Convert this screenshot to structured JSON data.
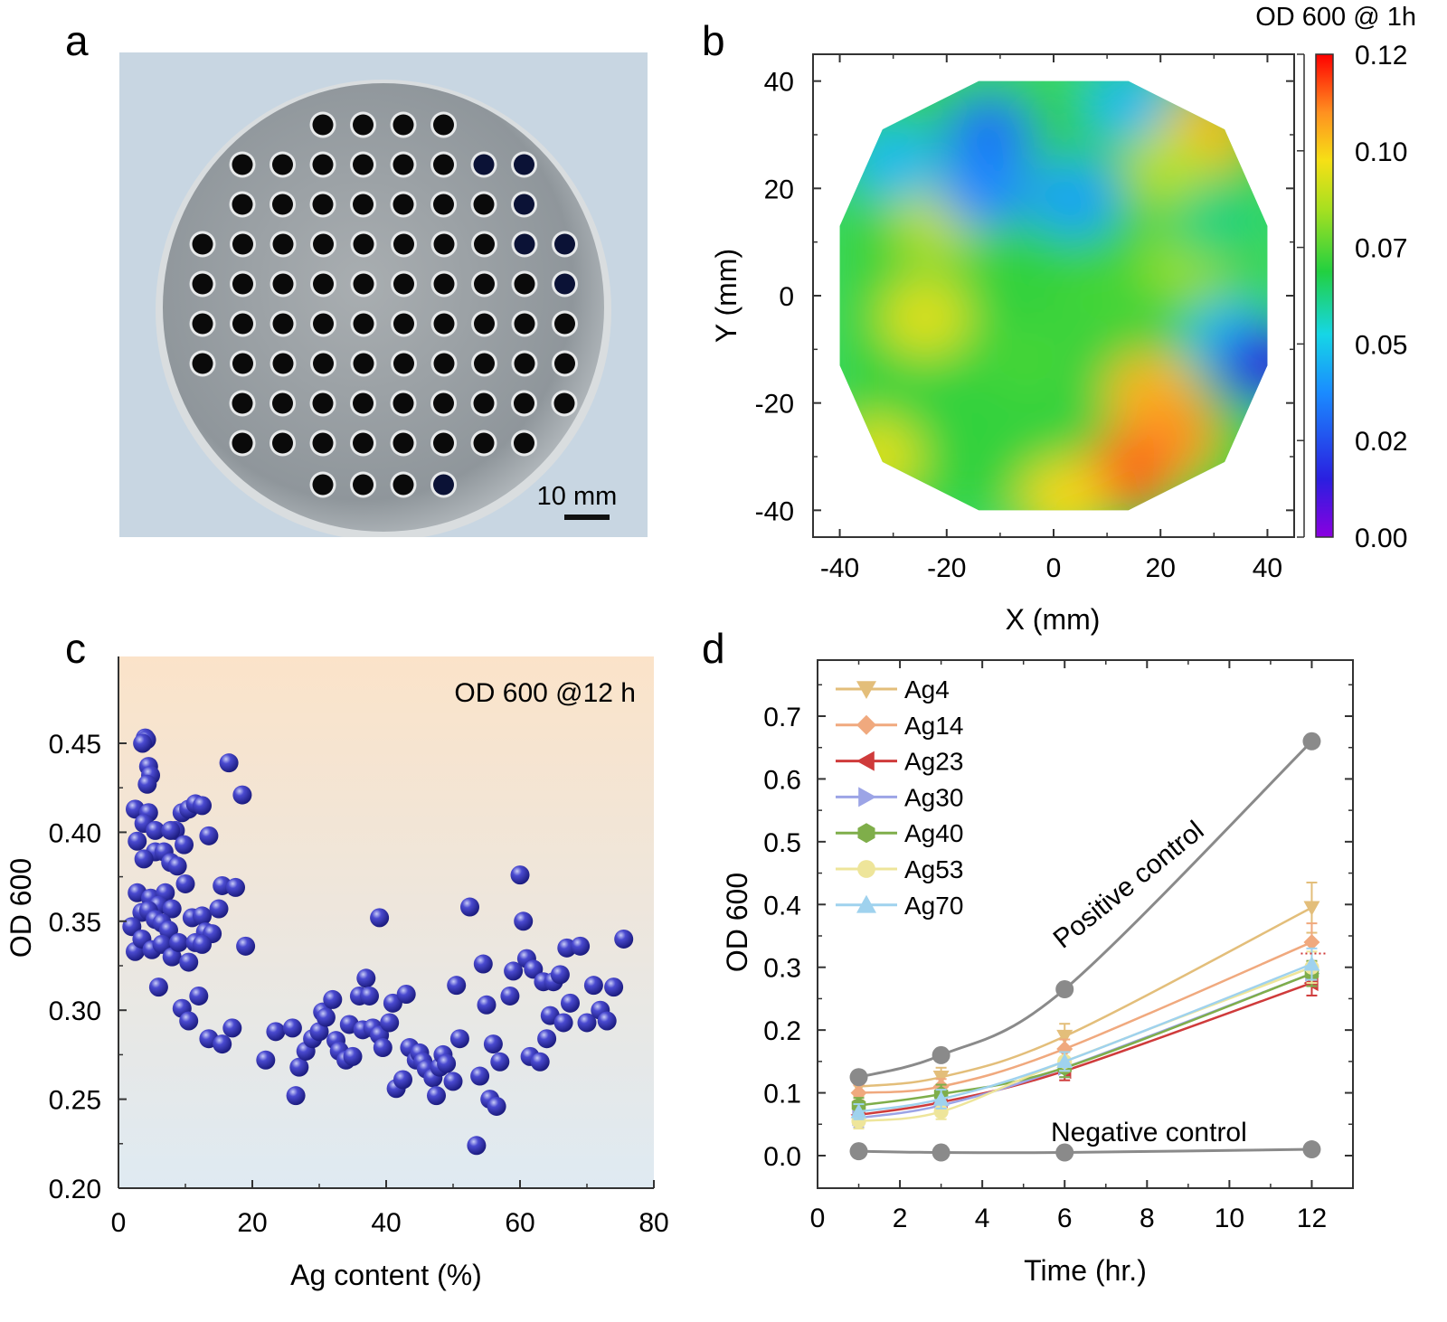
{
  "panels": {
    "a": {
      "letter": "a",
      "scale_bar_label": "10 mm",
      "hole_rows": [
        4,
        8,
        8,
        10,
        10,
        10,
        10,
        9,
        8,
        4
      ],
      "colors": {
        "background": "#c8d6e2",
        "disc": "#9aa1a6",
        "hole": "#0a0a0a",
        "hole_dark_blue": "#0b1236"
      }
    },
    "b": {
      "letter": "b",
      "chart_data": {
        "type": "heatmap",
        "title": "OD 600 @ 1h",
        "xlabel": "X (mm)",
        "ylabel": "Y (mm)",
        "xlim": [
          -45,
          45
        ],
        "ylim": [
          -45,
          45
        ],
        "xticks": [
          "-40",
          "-20",
          "0",
          "20",
          "40"
        ],
        "yticks": [
          "40",
          "20",
          "0",
          "-20",
          "-40"
        ],
        "colorbar": {
          "ticks": [
            "0.12",
            "0.10",
            "0.07",
            "0.05",
            "0.02",
            "0.00"
          ],
          "range": [
            0.0,
            0.12
          ]
        },
        "boundary_polygon": [
          [
            -14,
            40
          ],
          [
            14,
            40
          ],
          [
            32,
            31
          ],
          [
            40,
            13
          ],
          [
            40,
            -13
          ],
          [
            32,
            -31
          ],
          [
            14,
            -40
          ],
          [
            -14,
            -40
          ],
          [
            -32,
            -31
          ],
          [
            -40,
            -13
          ],
          [
            -40,
            13
          ],
          [
            -32,
            31
          ]
        ],
        "features": [
          {
            "x": -22,
            "y": 14,
            "value": 0.085
          },
          {
            "x": -24,
            "y": -4,
            "value": 0.09
          },
          {
            "x": -12,
            "y": 30,
            "value": 0.03
          },
          {
            "x": -13,
            "y": 20,
            "value": 0.035
          },
          {
            "x": 4,
            "y": 18,
            "value": 0.04
          },
          {
            "x": 14,
            "y": 36,
            "value": 0.045
          },
          {
            "x": 28,
            "y": 30,
            "value": 0.1
          },
          {
            "x": 22,
            "y": 24,
            "value": 0.085
          },
          {
            "x": 25,
            "y": 6,
            "value": 0.08
          },
          {
            "x": 33,
            "y": -8,
            "value": 0.045
          },
          {
            "x": 39,
            "y": -13,
            "value": 0.015
          },
          {
            "x": 18,
            "y": -18,
            "value": 0.1
          },
          {
            "x": 22,
            "y": -26,
            "value": 0.105
          },
          {
            "x": 14,
            "y": -33,
            "value": 0.11
          },
          {
            "x": 2,
            "y": -38,
            "value": 0.095
          },
          {
            "x": -33,
            "y": -30,
            "value": 0.09
          },
          {
            "x": 10,
            "y": 0,
            "value": 0.07
          },
          {
            "x": 30,
            "y": 14,
            "value": 0.06
          },
          {
            "x": -30,
            "y": 25,
            "value": 0.045
          },
          {
            "x": -5,
            "y": -12,
            "value": 0.07
          }
        ]
      }
    },
    "c": {
      "letter": "c",
      "chart_data": {
        "type": "scatter",
        "annotation": "OD 600 @12 h",
        "xlabel": "Ag content (%)",
        "ylabel": "OD 600",
        "xlim": [
          0,
          80
        ],
        "ylim": [
          0.2,
          0.5
        ],
        "xticks": [
          "0",
          "20",
          "40",
          "60",
          "80"
        ],
        "yticks": [
          "0.20",
          "0.25",
          "0.30",
          "0.35",
          "0.40",
          "0.45"
        ],
        "colors": {
          "point": "#2d2da8",
          "bg_top": "#fbe3c9",
          "bg_bottom": "#dfeaf2"
        },
        "points": [
          [
            4.0,
            0.453
          ],
          [
            4.2,
            0.452
          ],
          [
            3.6,
            0.45
          ],
          [
            4.5,
            0.437
          ],
          [
            4.8,
            0.432
          ],
          [
            4.3,
            0.427
          ],
          [
            2.5,
            0.413
          ],
          [
            4.5,
            0.411
          ],
          [
            3.8,
            0.405
          ],
          [
            2.8,
            0.395
          ],
          [
            5.5,
            0.401
          ],
          [
            9.5,
            0.411
          ],
          [
            10.5,
            0.413
          ],
          [
            11.5,
            0.416
          ],
          [
            12.5,
            0.415
          ],
          [
            8.5,
            0.401
          ],
          [
            7.8,
            0.401
          ],
          [
            13.5,
            0.398
          ],
          [
            9.8,
            0.393
          ],
          [
            5.5,
            0.389
          ],
          [
            6.8,
            0.389
          ],
          [
            7.8,
            0.383
          ],
          [
            3.8,
            0.385
          ],
          [
            8.8,
            0.381
          ],
          [
            2.8,
            0.366
          ],
          [
            4.8,
            0.363
          ],
          [
            7.0,
            0.366
          ],
          [
            6.0,
            0.359
          ],
          [
            8.0,
            0.357
          ],
          [
            10.0,
            0.371
          ],
          [
            3.5,
            0.355
          ],
          [
            4.5,
            0.356
          ],
          [
            2.0,
            0.347
          ],
          [
            5.5,
            0.351
          ],
          [
            6.5,
            0.349
          ],
          [
            7.5,
            0.345
          ],
          [
            11.0,
            0.352
          ],
          [
            12.5,
            0.353
          ],
          [
            13.0,
            0.344
          ],
          [
            14.0,
            0.343
          ],
          [
            15.5,
            0.37
          ],
          [
            17.5,
            0.369
          ],
          [
            15.0,
            0.357
          ],
          [
            16.5,
            0.439
          ],
          [
            18.5,
            0.421
          ],
          [
            2.5,
            0.333
          ],
          [
            3.5,
            0.34
          ],
          [
            5.0,
            0.334
          ],
          [
            6.5,
            0.337
          ],
          [
            8.0,
            0.33
          ],
          [
            9.0,
            0.338
          ],
          [
            10.5,
            0.327
          ],
          [
            11.5,
            0.338
          ],
          [
            12.5,
            0.337
          ],
          [
            19.0,
            0.336
          ],
          [
            6.0,
            0.313
          ],
          [
            9.5,
            0.301
          ],
          [
            12.0,
            0.308
          ],
          [
            10.5,
            0.294
          ],
          [
            13.5,
            0.284
          ],
          [
            15.5,
            0.281
          ],
          [
            17.0,
            0.29
          ],
          [
            22.0,
            0.272
          ],
          [
            23.5,
            0.288
          ],
          [
            26.0,
            0.29
          ],
          [
            27.0,
            0.268
          ],
          [
            28.0,
            0.277
          ],
          [
            29.0,
            0.284
          ],
          [
            30.0,
            0.288
          ],
          [
            30.5,
            0.299
          ],
          [
            31.0,
            0.296
          ],
          [
            32.0,
            0.306
          ],
          [
            32.5,
            0.283
          ],
          [
            33.0,
            0.277
          ],
          [
            34.0,
            0.272
          ],
          [
            34.5,
            0.292
          ],
          [
            35.0,
            0.274
          ],
          [
            36.0,
            0.308
          ],
          [
            36.5,
            0.289
          ],
          [
            37.0,
            0.318
          ],
          [
            37.5,
            0.308
          ],
          [
            38.0,
            0.29
          ],
          [
            39.0,
            0.286
          ],
          [
            39.5,
            0.279
          ],
          [
            40.5,
            0.293
          ],
          [
            41.0,
            0.304
          ],
          [
            41.5,
            0.256
          ],
          [
            42.5,
            0.261
          ],
          [
            43.0,
            0.309
          ],
          [
            43.5,
            0.279
          ],
          [
            44.5,
            0.272
          ],
          [
            45.0,
            0.276
          ],
          [
            45.5,
            0.271
          ],
          [
            46.0,
            0.267
          ],
          [
            47.0,
            0.262
          ],
          [
            47.5,
            0.252
          ],
          [
            48.0,
            0.268
          ],
          [
            48.5,
            0.275
          ],
          [
            49.0,
            0.27
          ],
          [
            50.0,
            0.26
          ],
          [
            50.5,
            0.314
          ],
          [
            51.0,
            0.284
          ],
          [
            52.5,
            0.358
          ],
          [
            53.5,
            0.224
          ],
          [
            54.0,
            0.263
          ],
          [
            54.5,
            0.326
          ],
          [
            55.0,
            0.303
          ],
          [
            55.5,
            0.25
          ],
          [
            56.0,
            0.281
          ],
          [
            56.5,
            0.246
          ],
          [
            57.0,
            0.271
          ],
          [
            58.5,
            0.308
          ],
          [
            59.0,
            0.322
          ],
          [
            60.0,
            0.376
          ],
          [
            60.5,
            0.35
          ],
          [
            61.0,
            0.329
          ],
          [
            61.5,
            0.274
          ],
          [
            62.0,
            0.323
          ],
          [
            63.0,
            0.271
          ],
          [
            63.5,
            0.316
          ],
          [
            64.0,
            0.284
          ],
          [
            64.5,
            0.297
          ],
          [
            65.0,
            0.316
          ],
          [
            66.0,
            0.32
          ],
          [
            66.5,
            0.293
          ],
          [
            67.0,
            0.335
          ],
          [
            67.5,
            0.304
          ],
          [
            69.0,
            0.336
          ],
          [
            70.0,
            0.293
          ],
          [
            71.0,
            0.314
          ],
          [
            72.0,
            0.3
          ],
          [
            73.0,
            0.294
          ],
          [
            74.0,
            0.313
          ],
          [
            75.5,
            0.34
          ],
          [
            26.5,
            0.252
          ],
          [
            39.0,
            0.352
          ]
        ]
      }
    },
    "d": {
      "letter": "d",
      "chart_data": {
        "type": "line",
        "xlabel": "Time  (hr.)",
        "ylabel": "OD 600",
        "xlim": [
          0,
          13
        ],
        "ylim": [
          -0.04,
          0.78
        ],
        "xticks": [
          0,
          2,
          4,
          6,
          8,
          10,
          12
        ],
        "yticks": [
          "0.0",
          "0.1",
          "0.2",
          "0.3",
          "0.4",
          "0.5",
          "0.6",
          "0.7"
        ],
        "x": [
          1,
          3,
          6,
          12
        ],
        "series": [
          {
            "name": "Ag4",
            "marker": "triangle-down",
            "color": "#e3be7a",
            "values": [
              0.11,
              0.125,
              0.19,
              0.395
            ],
            "errors": [
              0.015,
              0.015,
              0.02,
              0.04
            ]
          },
          {
            "name": "Ag14",
            "marker": "diamond",
            "color": "#f0a97e",
            "values": [
              0.1,
              0.11,
              0.17,
              0.34
            ],
            "errors": [
              0.012,
              0.012,
              0.015,
              0.03
            ]
          },
          {
            "name": "Ag23",
            "marker": "triangle-left",
            "color": "#cf3b3b",
            "values": [
              0.065,
              0.085,
              0.135,
              0.275
            ],
            "errors": [
              0.015,
              0.02,
              0.015,
              0.02
            ]
          },
          {
            "name": "Ag30",
            "marker": "triangle-right",
            "color": "#9ca4e6",
            "values": [
              0.06,
              0.08,
              0.14,
              0.29
            ],
            "errors": [
              0.015,
              0.015,
              0.015,
              0.02
            ]
          },
          {
            "name": "Ag40",
            "marker": "hexagon",
            "color": "#7fae4a",
            "values": [
              0.08,
              0.098,
              0.14,
              0.29
            ],
            "errors": [
              0.012,
              0.015,
              0.015,
              0.02
            ]
          },
          {
            "name": "Ag53",
            "marker": "circle",
            "color": "#eee59a",
            "values": [
              0.055,
              0.07,
              0.15,
              0.3
            ],
            "errors": [
              0.012,
              0.012,
              0.015,
              0.025
            ]
          },
          {
            "name": "Ag70",
            "marker": "triangle-up",
            "color": "#9fd2ee",
            "values": [
              0.07,
              0.09,
              0.15,
              0.305
            ],
            "errors": [
              0.012,
              0.015,
              0.015,
              0.025
            ]
          }
        ],
        "controls": [
          {
            "label": "Positive control",
            "color": "#8a8a8a",
            "values": [
              0.125,
              0.16,
              0.265,
              0.66
            ]
          },
          {
            "label": "Negative control",
            "color": "#8a8a8a",
            "values": [
              0.007,
              0.005,
              0.005,
              0.01
            ]
          }
        ]
      }
    }
  }
}
